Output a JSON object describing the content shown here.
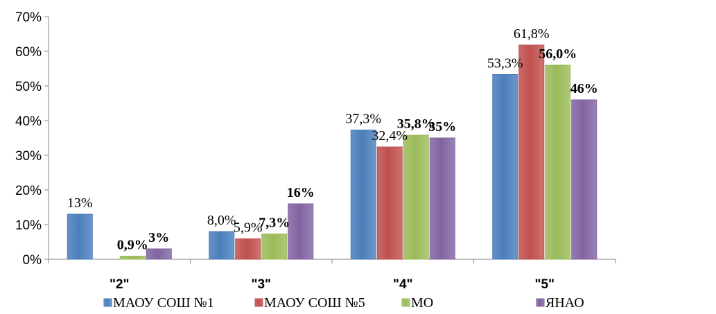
{
  "chart_data": {
    "type": "bar",
    "categories": [
      "\"2\"",
      "\"3\"",
      "\"4\"",
      "\"5\""
    ],
    "ylim": [
      0,
      70
    ],
    "y_ticks": [
      "0%",
      "10%",
      "20%",
      "30%",
      "40%",
      "50%",
      "60%",
      "70%"
    ],
    "grid": false,
    "legend_position": "bottom",
    "series": [
      {
        "name": "МАОУ СОШ №1",
        "color": "#4a7ebb",
        "values": [
          13,
          8.0,
          37.3,
          53.3
        ],
        "labels": [
          "13%",
          "8,0%",
          "37,3%",
          "53,3%"
        ],
        "label_bold": false
      },
      {
        "name": "МАОУ СОШ №5",
        "color": "#c0504d",
        "values": [
          0,
          5.9,
          32.4,
          61.8
        ],
        "labels": [
          "",
          "5,9%",
          "32,4%",
          "61,8%"
        ],
        "label_bold": false
      },
      {
        "name": "МО",
        "color": "#9bbb59",
        "values": [
          0.9,
          7.3,
          35.8,
          56.0
        ],
        "labels": [
          "0,9%",
          "7,3%",
          "35,8%",
          "56,0%"
        ],
        "label_bold": true
      },
      {
        "name": "ЯНАО",
        "color": "#8064a2",
        "values": [
          3,
          16,
          35,
          46
        ],
        "labels": [
          "3%",
          "16%",
          "35%",
          "46%"
        ],
        "label_bold": true
      }
    ]
  }
}
